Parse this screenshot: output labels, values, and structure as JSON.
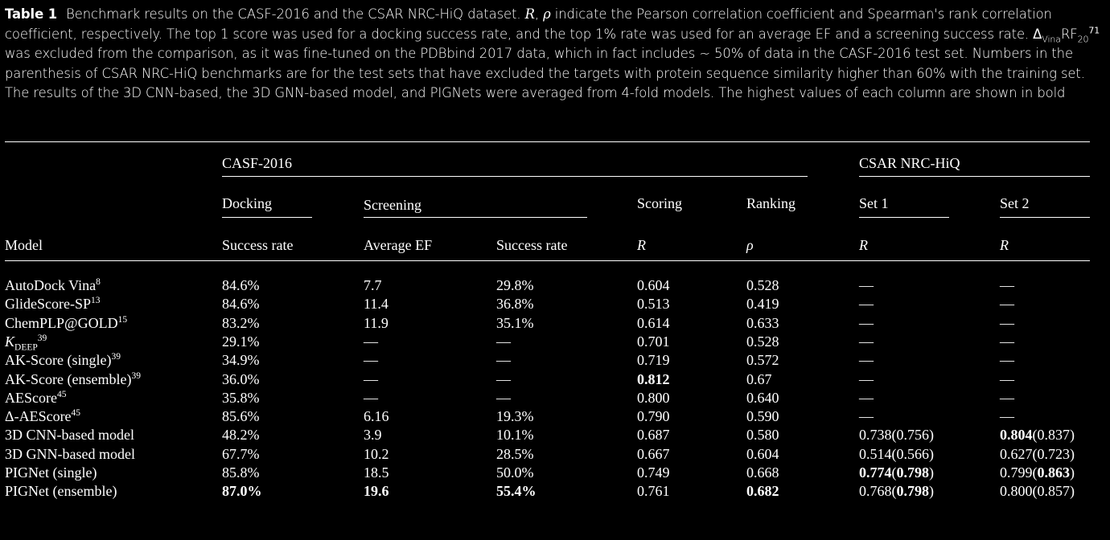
{
  "caption": {
    "label": "Table 1",
    "p1": "Benchmark results on the CASF-2016 and the CSAR NRC-HiQ dataset.",
    "r_sym": "R",
    "rho_sym": "ρ",
    "p2": "indicate the Pearson correlation coefficient and Spearman's rank correlation coefficient, respectively. The top 1 score was used for a docking success rate, and the top 1% rate was used for an average EF and a screening success rate.",
    "delta_base": "Δ",
    "delta_sub": "Vina",
    "delta_rf": "RF",
    "delta_rf_sub": "20",
    "delta_ref": "71",
    "p3": "was excluded from the comparison, as it was fine-tuned on the PDBbind 2017 data, which in fact includes ~ 50% of data in the CASF-2016 test set. Numbers in the parenthesis of CSAR NRC-HiQ benchmarks are for the test sets that have excluded the targets with protein sequence similarity higher than 60% with the training set. The results of the 3D CNN-based, the 3D GNN-based model, and PIGNets were averaged from 4-fold models. The highest values of each column are shown in bold"
  },
  "headers": {
    "casf": "CASF-2016",
    "csar": "CSAR NRC-HiQ",
    "docking": "Docking",
    "screening": "Screening",
    "scoring": "Scoring",
    "ranking": "Ranking",
    "set1": "Set 1",
    "set2": "Set 2",
    "model": "Model",
    "success_rate": "Success rate",
    "average_ef": "Average EF",
    "success_rate2": "Success rate",
    "r": "R",
    "rho": "ρ",
    "r_set1": "R",
    "r_set2": "R"
  },
  "rows": [
    {
      "m": "AutoDock Vina",
      "ref": "8",
      "dock": "84.6%",
      "ef": "7.7",
      "scr": "29.8%",
      "r": "0.604",
      "rho": "0.528",
      "s1": "—",
      "s2": "—"
    },
    {
      "m": "GlideScore-SP",
      "ref": "13",
      "dock": "84.6%",
      "ef": "11.4",
      "scr": "36.8%",
      "r": "0.513",
      "rho": "0.419",
      "s1": "—",
      "s2": "—"
    },
    {
      "m": "ChemPLP@GOLD",
      "ref": "15",
      "dock": "83.2%",
      "ef": "11.9",
      "scr": "35.1%",
      "r": "0.614",
      "rho": "0.633",
      "s1": "—",
      "s2": "—"
    },
    {
      "m": "K",
      "msub": "DEEP",
      "ref": "39",
      "dock": "29.1%",
      "ef": "—",
      "scr": "—",
      "r": "0.701",
      "rho": "0.528",
      "s1": "—",
      "s2": "—"
    },
    {
      "m": "AK-Score (single)",
      "ref": "39",
      "dock": "34.9%",
      "ef": "—",
      "scr": "—",
      "r": "0.719",
      "rho": "0.572",
      "s1": "—",
      "s2": "—"
    },
    {
      "m": "AK-Score (ensemble)",
      "ref": "39",
      "dock": "36.0%",
      "ef": "—",
      "scr": "—",
      "r": "0.812",
      "rho": "0.67",
      "s1": "—",
      "s2": "—"
    },
    {
      "m": "AEScore",
      "ref": "45",
      "dock": "35.8%",
      "ef": "—",
      "scr": "—",
      "r": "0.800",
      "rho": "0.640",
      "s1": "—",
      "s2": "—"
    },
    {
      "m": "Δ-AEScore",
      "ref": "45",
      "dock": "85.6%",
      "ef": "6.16",
      "scr": "19.3%",
      "r": "0.790",
      "rho": "0.590",
      "s1": "—",
      "s2": "—"
    },
    {
      "m": "3D CNN-based model",
      "ref": "",
      "dock": "48.2%",
      "ef": "3.9",
      "scr": "10.1%",
      "r": "0.687",
      "rho": "0.580",
      "s1a": "0.738",
      "s1b": "(0.756)",
      "s2a": "0.804",
      "s2b": "(0.837)"
    },
    {
      "m": "3D GNN-based model",
      "ref": "",
      "dock": "67.7%",
      "ef": "10.2",
      "scr": "28.5%",
      "r": "0.667",
      "rho": "0.604",
      "s1a": "0.514",
      "s1b": "(0.566)",
      "s2a": "0.627",
      "s2b": "(0.723)"
    },
    {
      "m": "PIGNet (single)",
      "ref": "",
      "dock": "85.8%",
      "ef": "18.5",
      "scr": "50.0%",
      "r": "0.749",
      "rho": "0.668",
      "s1a": "0.774",
      "s1b": "(",
      "s1c": "0.798",
      "s1d": ")",
      "s2a": "0.799",
      "s2b": "(",
      "s2c": "0.863",
      "s2d": ")"
    },
    {
      "m": "PIGNet (ensemble)",
      "ref": "",
      "dock": "87.0%",
      "ef": "19.6",
      "scr": "55.4%",
      "r": "0.761",
      "rho": "0.682",
      "s1a": "0.768",
      "s1b": "(",
      "s1c": "0.798",
      "s1d": ")",
      "s2a": "0.800",
      "s2b": "(0.857)"
    }
  ]
}
